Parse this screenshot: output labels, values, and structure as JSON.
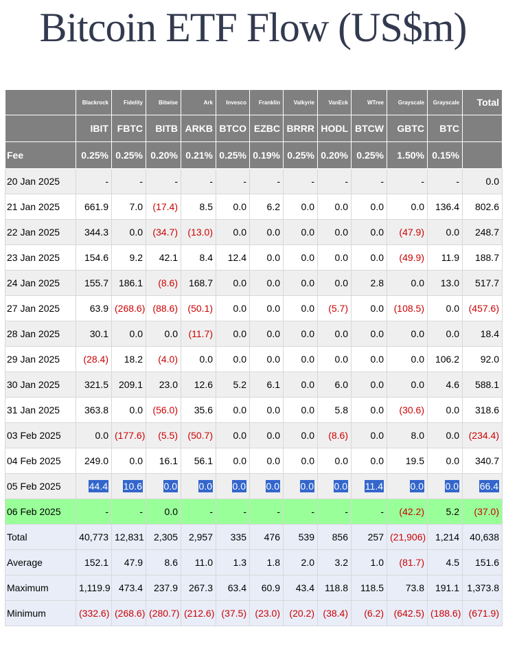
{
  "title": "Bitcoin ETF Flow (US$m)",
  "table": {
    "issuers": [
      "Blackrock",
      "Fidelity",
      "Bitwise",
      "Ark",
      "Invesco",
      "Franklin",
      "Valkyrie",
      "VanEck",
      "WTree",
      "Grayscale",
      "Grayscale"
    ],
    "total_label": "Total",
    "tickers": [
      "IBIT",
      "FBTC",
      "BITB",
      "ARKB",
      "BTCO",
      "EZBC",
      "BRRR",
      "HODL",
      "BTCW",
      "GBTC",
      "BTC"
    ],
    "fee_label": "Fee",
    "fees": [
      "0.25%",
      "0.25%",
      "0.20%",
      "0.21%",
      "0.25%",
      "0.19%",
      "0.25%",
      "0.20%",
      "0.25%",
      "1.50%",
      "0.15%"
    ],
    "rows": [
      {
        "label": "20 Jan 2025",
        "cells": [
          "-",
          "-",
          "-",
          "-",
          "-",
          "-",
          "-",
          "-",
          "-",
          "-",
          "-",
          "0.0"
        ]
      },
      {
        "label": "21 Jan 2025",
        "cells": [
          "661.9",
          "7.0",
          "(17.4)",
          "8.5",
          "0.0",
          "6.2",
          "0.0",
          "0.0",
          "0.0",
          "0.0",
          "136.4",
          "802.6"
        ]
      },
      {
        "label": "22 Jan 2025",
        "cells": [
          "344.3",
          "0.0",
          "(34.7)",
          "(13.0)",
          "0.0",
          "0.0",
          "0.0",
          "0.0",
          "0.0",
          "(47.9)",
          "0.0",
          "248.7"
        ]
      },
      {
        "label": "23 Jan 2025",
        "cells": [
          "154.6",
          "9.2",
          "42.1",
          "8.4",
          "12.4",
          "0.0",
          "0.0",
          "0.0",
          "0.0",
          "(49.9)",
          "11.9",
          "188.7"
        ]
      },
      {
        "label": "24 Jan 2025",
        "cells": [
          "155.7",
          "186.1",
          "(8.6)",
          "168.7",
          "0.0",
          "0.0",
          "0.0",
          "0.0",
          "2.8",
          "0.0",
          "13.0",
          "517.7"
        ]
      },
      {
        "label": "27 Jan 2025",
        "cells": [
          "63.9",
          "(268.6)",
          "(88.6)",
          "(50.1)",
          "0.0",
          "0.0",
          "0.0",
          "(5.7)",
          "0.0",
          "(108.5)",
          "0.0",
          "(457.6)"
        ]
      },
      {
        "label": "28 Jan 2025",
        "cells": [
          "30.1",
          "0.0",
          "0.0",
          "(11.7)",
          "0.0",
          "0.0",
          "0.0",
          "0.0",
          "0.0",
          "0.0",
          "0.0",
          "18.4"
        ]
      },
      {
        "label": "29 Jan 2025",
        "cells": [
          "(28.4)",
          "18.2",
          "(4.0)",
          "0.0",
          "0.0",
          "0.0",
          "0.0",
          "0.0",
          "0.0",
          "0.0",
          "106.2",
          "92.0"
        ]
      },
      {
        "label": "30 Jan 2025",
        "cells": [
          "321.5",
          "209.1",
          "23.0",
          "12.6",
          "5.2",
          "6.1",
          "0.0",
          "6.0",
          "0.0",
          "0.0",
          "4.6",
          "588.1"
        ]
      },
      {
        "label": "31 Jan 2025",
        "cells": [
          "363.8",
          "0.0",
          "(56.0)",
          "35.6",
          "0.0",
          "0.0",
          "0.0",
          "5.8",
          "0.0",
          "(30.6)",
          "0.0",
          "318.6"
        ]
      },
      {
        "label": "03 Feb 2025",
        "cells": [
          "0.0",
          "(177.6)",
          "(5.5)",
          "(50.7)",
          "0.0",
          "0.0",
          "0.0",
          "(8.6)",
          "0.0",
          "8.0",
          "0.0",
          "(234.4)"
        ]
      },
      {
        "label": "04 Feb 2025",
        "cells": [
          "249.0",
          "0.0",
          "16.1",
          "56.1",
          "0.0",
          "0.0",
          "0.0",
          "0.0",
          "0.0",
          "19.5",
          "0.0",
          "340.7"
        ]
      },
      {
        "label": "05 Feb 2025",
        "cells": [
          "44.4",
          "10.6",
          "0.0",
          "0.0",
          "0.0",
          "0.0",
          "0.0",
          "0.0",
          "11.4",
          "0.0",
          "0.0",
          "66.4"
        ]
      },
      {
        "label": "06 Feb 2025",
        "cells": [
          "-",
          "-",
          "0.0",
          "-",
          "-",
          "-",
          "-",
          "-",
          "-",
          "(42.2)",
          "5.2",
          "(37.0)"
        ]
      }
    ],
    "summary": [
      {
        "label": "Total",
        "cells": [
          "40,773",
          "12,831",
          "2,305",
          "2,957",
          "335",
          "476",
          "539",
          "856",
          "257",
          "(21,906)",
          "1,214",
          "40,638"
        ]
      },
      {
        "label": "Average",
        "cells": [
          "152.1",
          "47.9",
          "8.6",
          "11.0",
          "1.3",
          "1.8",
          "2.0",
          "3.2",
          "1.0",
          "(81.7)",
          "4.5",
          "151.6"
        ]
      },
      {
        "label": "Maximum",
        "cells": [
          "1,119.9",
          "473.4",
          "237.9",
          "267.3",
          "63.4",
          "60.9",
          "43.4",
          "118.8",
          "118.5",
          "73.8",
          "191.1",
          "1,373.8"
        ]
      },
      {
        "label": "Minimum",
        "cells": [
          "(332.6)",
          "(268.6)",
          "(280.7)",
          "(212.6)",
          "(37.5)",
          "(23.0)",
          "(20.2)",
          "(38.4)",
          "(6.2)",
          "(642.5)",
          "(188.6)",
          "(671.9)"
        ]
      }
    ]
  }
}
